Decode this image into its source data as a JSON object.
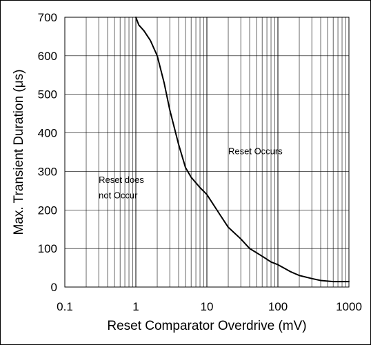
{
  "chart_data": {
    "type": "line",
    "title": "",
    "xlabel": "Reset Comparator Overdrive (mV)",
    "ylabel": "Max. Transient Duration (μs)",
    "xscale": "log",
    "xlim": [
      0.1,
      1000
    ],
    "ylim": [
      0,
      700
    ],
    "grid": true,
    "legend": "none",
    "x_ticks": [
      "0.1",
      "1",
      "10",
      "100",
      "1000"
    ],
    "y_ticks": [
      "0",
      "100",
      "200",
      "300",
      "400",
      "500",
      "600",
      "700"
    ],
    "series": [
      {
        "color": "#000000",
        "points": [
          [
            1.0,
            700
          ],
          [
            1.1,
            680
          ],
          [
            1.3,
            665
          ],
          [
            1.6,
            640
          ],
          [
            2.0,
            600
          ],
          [
            2.5,
            530
          ],
          [
            3.0,
            460
          ],
          [
            4.0,
            370
          ],
          [
            5.0,
            310
          ],
          [
            6.0,
            285
          ],
          [
            8.0,
            258
          ],
          [
            10.0,
            240
          ],
          [
            15.0,
            190
          ],
          [
            20.0,
            155
          ],
          [
            30.0,
            125
          ],
          [
            40.0,
            100
          ],
          [
            60.0,
            80
          ],
          [
            80.0,
            65
          ],
          [
            100.0,
            58
          ],
          [
            150.0,
            40
          ],
          [
            200.0,
            30
          ],
          [
            300.0,
            22
          ],
          [
            400.0,
            17
          ],
          [
            600.0,
            14
          ],
          [
            1000.0,
            14
          ]
        ]
      }
    ],
    "annotations": [
      {
        "text": "Reset Occurs",
        "x": 20,
        "y": 345
      },
      {
        "text": "Reset does",
        "x": 0.3,
        "y": 270
      },
      {
        "text": "not Occur",
        "x": 0.3,
        "y": 230
      }
    ]
  }
}
